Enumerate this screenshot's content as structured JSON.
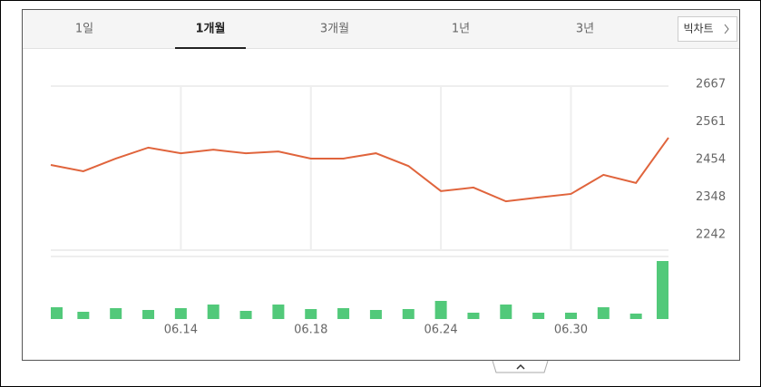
{
  "tabs": [
    "1일",
    "1개월",
    "3개월",
    "1년",
    "3년"
  ],
  "active_tab": 1,
  "button": "빅차트",
  "chart_data": {
    "type": "line",
    "categories": [
      null,
      null,
      null,
      null,
      "06.14",
      null,
      null,
      null,
      "06.18",
      null,
      null,
      null,
      "06.24",
      null,
      null,
      null,
      "06.30",
      null,
      null,
      null
    ],
    "series": [
      {
        "color": "#e0643c",
        "values": [
          2439,
          2421,
          2457,
          2488,
          2472,
          2482,
          2472,
          2477,
          2457,
          2457,
          2472,
          2436,
          2365,
          2375,
          2336,
          2347,
          2357,
          2411,
          2388,
          2516
        ]
      }
    ],
    "ylim": [
      2198,
      2667
    ],
    "yticks": [
      2242,
      2348,
      2454,
      2561,
      2667
    ],
    "grid": true,
    "volume": {
      "color": "#52c97a",
      "ylim": [
        0,
        69
      ],
      "values": [
        13,
        8,
        12,
        10,
        12,
        16,
        9,
        16,
        11,
        12,
        10,
        11,
        20,
        7,
        16,
        7,
        7,
        13,
        6,
        64
      ]
    }
  }
}
